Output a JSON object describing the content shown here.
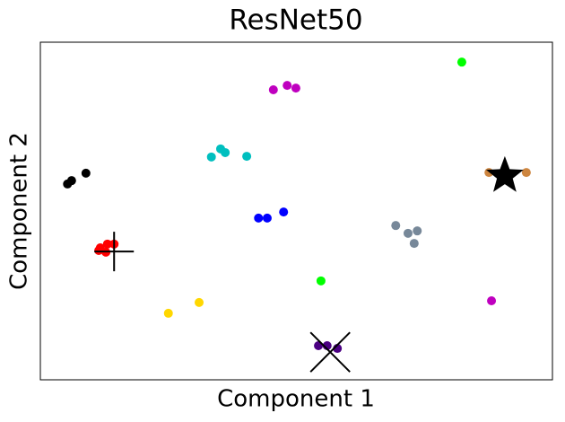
{
  "chart_data": {
    "type": "scatter",
    "title": "ResNet50",
    "x_label": "Component 1",
    "y_label": "Component 2",
    "xlim": [
      0,
      1
    ],
    "ylim": [
      0,
      1
    ],
    "xticks": [],
    "yticks": [],
    "series": [
      {
        "color": "#000000",
        "marker": "o",
        "x": [
          0.053,
          0.061,
          0.089
        ],
        "values": [
          0.58,
          0.59,
          0.612
        ]
      },
      {
        "color": "#ff0000",
        "marker": "o",
        "x": [
          0.117,
          0.131,
          0.144,
          0.114,
          0.128
        ],
        "values": [
          0.391,
          0.402,
          0.402,
          0.383,
          0.378
        ]
      },
      {
        "color": "#00bfbf",
        "marker": "o",
        "x": [
          0.334,
          0.352,
          0.361,
          0.403
        ],
        "values": [
          0.66,
          0.684,
          0.673,
          0.662
        ]
      },
      {
        "color": "#bf00bf",
        "marker": "o",
        "x": [
          0.455,
          0.482,
          0.499
        ],
        "values": [
          0.859,
          0.872,
          0.864
        ]
      },
      {
        "color": "#00ff00",
        "marker": "o",
        "x": [
          0.823
        ],
        "values": [
          0.941
        ]
      },
      {
        "color": "#0000ff",
        "marker": "o",
        "x": [
          0.426,
          0.443,
          0.475
        ],
        "values": [
          0.479,
          0.479,
          0.497
        ]
      },
      {
        "color": "#ffd700",
        "marker": "o",
        "x": [
          0.25,
          0.31
        ],
        "values": [
          0.197,
          0.229
        ]
      },
      {
        "color": "#00ff00",
        "marker": "o",
        "x": [
          0.548
        ],
        "values": [
          0.293
        ]
      },
      {
        "color": "#4b0082",
        "marker": "o",
        "x": [
          0.543,
          0.56,
          0.58
        ],
        "values": [
          0.101,
          0.101,
          0.093
        ]
      },
      {
        "color": "#778899",
        "marker": "o",
        "x": [
          0.694,
          0.718,
          0.736,
          0.73
        ],
        "values": [
          0.457,
          0.434,
          0.441,
          0.404
        ]
      },
      {
        "color": "#cd853f",
        "marker": "o",
        "x": [
          0.876,
          0.902,
          0.949
        ],
        "values": [
          0.614,
          0.612,
          0.614
        ]
      },
      {
        "color": "#bf00bf",
        "marker": "o",
        "x": [
          0.881
        ],
        "values": [
          0.234
        ]
      },
      {
        "color": "#000000",
        "marker": "+",
        "x": [
          0.144
        ],
        "values": [
          0.38
        ]
      },
      {
        "color": "#000000",
        "marker": "*",
        "x": [
          0.907
        ],
        "values": [
          0.604
        ]
      },
      {
        "color": "#000000",
        "marker": "x",
        "x": [
          0.566
        ],
        "values": [
          0.082
        ]
      }
    ]
  }
}
